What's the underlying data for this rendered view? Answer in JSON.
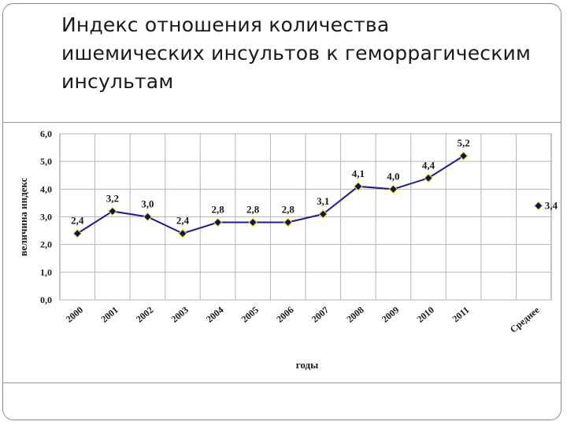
{
  "title": "Индекс отношения количества ишемических инсультов к геморрагическим  инсультам",
  "chart_data": {
    "type": "line",
    "title": "Индекс отношения количества ишемических инсультов к геморрагическим  инсультам",
    "xlabel": "годы",
    "ylabel": "величина индекс",
    "categories": [
      "2000",
      "2001",
      "2002",
      "2003",
      "2004",
      "2005",
      "2006",
      "2007",
      "2008",
      "2009",
      "2010",
      "2011",
      "",
      "Среднее"
    ],
    "series": [
      {
        "values": [
          2.4,
          3.2,
          3.0,
          2.4,
          2.8,
          2.8,
          2.8,
          3.1,
          4.1,
          4.0,
          4.4,
          5.2,
          null,
          null
        ],
        "labels": [
          "2,4",
          "3,2",
          "3,0",
          "2,4",
          "2,8",
          "2,8",
          "2,8",
          "3,1",
          "4,1",
          "4,0",
          "4,4",
          "5,2",
          "",
          ""
        ],
        "color": "#1c1c8c"
      }
    ],
    "average": {
      "category": "Среднее",
      "value": 3.4,
      "label": "3,4"
    },
    "ylim": [
      0,
      6
    ],
    "yticks": [
      {
        "value": 0,
        "label": "0,0"
      },
      {
        "value": 1,
        "label": "1,0"
      },
      {
        "value": 2,
        "label": "2,0"
      },
      {
        "value": 3,
        "label": "3,0"
      },
      {
        "value": 4,
        "label": "4,0"
      },
      {
        "value": 5,
        "label": "5,0"
      },
      {
        "value": 6,
        "label": "6,0"
      }
    ],
    "grid": true,
    "legend": "none",
    "marker_color": "#10105a",
    "marker_edge": "#e8e000"
  }
}
